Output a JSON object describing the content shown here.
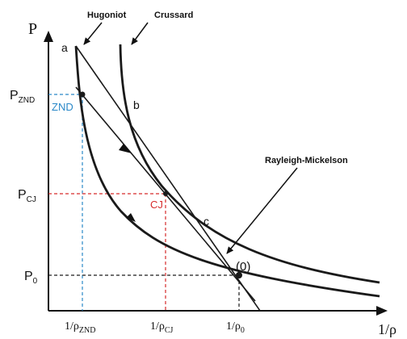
{
  "axes": {
    "y_label": "P",
    "x_label": "1/ρ"
  },
  "curves": {
    "hugoniot": "Hugoniot",
    "crussard": "Crussard",
    "rayleigh": "Rayleigh-Mickelson"
  },
  "points": {
    "a": "a",
    "b": "b",
    "c": "c",
    "zero": "(0)",
    "znd": "ZND",
    "cj": "CJ"
  },
  "y_ticks": [
    {
      "base": "P",
      "sub": "ZND"
    },
    {
      "base": "P",
      "sub": "CJ"
    },
    {
      "base": "P",
      "sub": "0"
    }
  ],
  "x_ticks": [
    {
      "base": "1/ρ",
      "sub": "ZND"
    },
    {
      "base": "1/ρ",
      "sub": "CJ"
    },
    {
      "base": "1/ρ",
      "sub": "0"
    }
  ],
  "colors": {
    "curve": "#1a1a1a",
    "znd_guide": "#2a88c8",
    "cj_guide": "#d62b2b",
    "zero_guide": "#1a1a1a"
  }
}
